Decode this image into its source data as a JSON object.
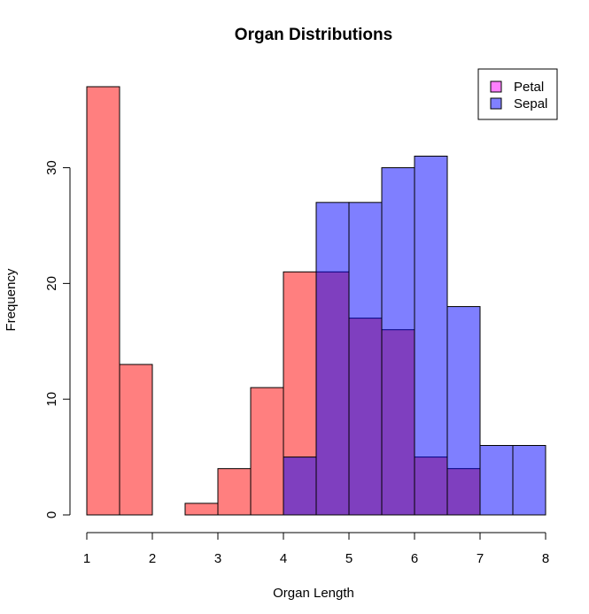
{
  "chart_data": {
    "type": "histogram",
    "title": "Organ Distributions",
    "xlabel": "Organ Length",
    "ylabel": "Frequency",
    "xlim": [
      1,
      8
    ],
    "ylim": [
      0,
      37
    ],
    "xticks": [
      1,
      2,
      3,
      4,
      5,
      6,
      7,
      8
    ],
    "yticks": [
      0,
      10,
      20,
      30
    ],
    "bin_width": 0.5,
    "series": [
      {
        "name": "Petal",
        "color": "#ff0000",
        "alpha": 0.5,
        "bins": [
          {
            "x0": 1.0,
            "x1": 1.5,
            "count": 37
          },
          {
            "x0": 1.5,
            "x1": 2.0,
            "count": 13
          },
          {
            "x0": 2.0,
            "x1": 2.5,
            "count": 0
          },
          {
            "x0": 2.5,
            "x1": 3.0,
            "count": 1
          },
          {
            "x0": 3.0,
            "x1": 3.5,
            "count": 4
          },
          {
            "x0": 3.5,
            "x1": 4.0,
            "count": 11
          },
          {
            "x0": 4.0,
            "x1": 4.5,
            "count": 21
          },
          {
            "x0": 4.5,
            "x1": 5.0,
            "count": 21
          },
          {
            "x0": 5.0,
            "x1": 5.5,
            "count": 17
          },
          {
            "x0": 5.5,
            "x1": 6.0,
            "count": 16
          },
          {
            "x0": 6.0,
            "x1": 6.5,
            "count": 5
          },
          {
            "x0": 6.5,
            "x1": 7.0,
            "count": 4
          }
        ]
      },
      {
        "name": "Sepal",
        "color": "#0000ff",
        "alpha": 0.5,
        "bins": [
          {
            "x0": 4.0,
            "x1": 4.5,
            "count": 5
          },
          {
            "x0": 4.5,
            "x1": 5.0,
            "count": 27
          },
          {
            "x0": 5.0,
            "x1": 5.5,
            "count": 27
          },
          {
            "x0": 5.5,
            "x1": 6.0,
            "count": 30
          },
          {
            "x0": 6.0,
            "x1": 6.5,
            "count": 31
          },
          {
            "x0": 6.5,
            "x1": 7.0,
            "count": 18
          },
          {
            "x0": 7.0,
            "x1": 7.5,
            "count": 6
          },
          {
            "x0": 7.5,
            "x1": 8.0,
            "count": 6
          }
        ]
      }
    ],
    "legend": {
      "position": "top-right",
      "entries": [
        {
          "label": "Petal",
          "color": "#ff80ff"
        },
        {
          "label": "Sepal",
          "color": "#8080ff"
        }
      ]
    }
  }
}
